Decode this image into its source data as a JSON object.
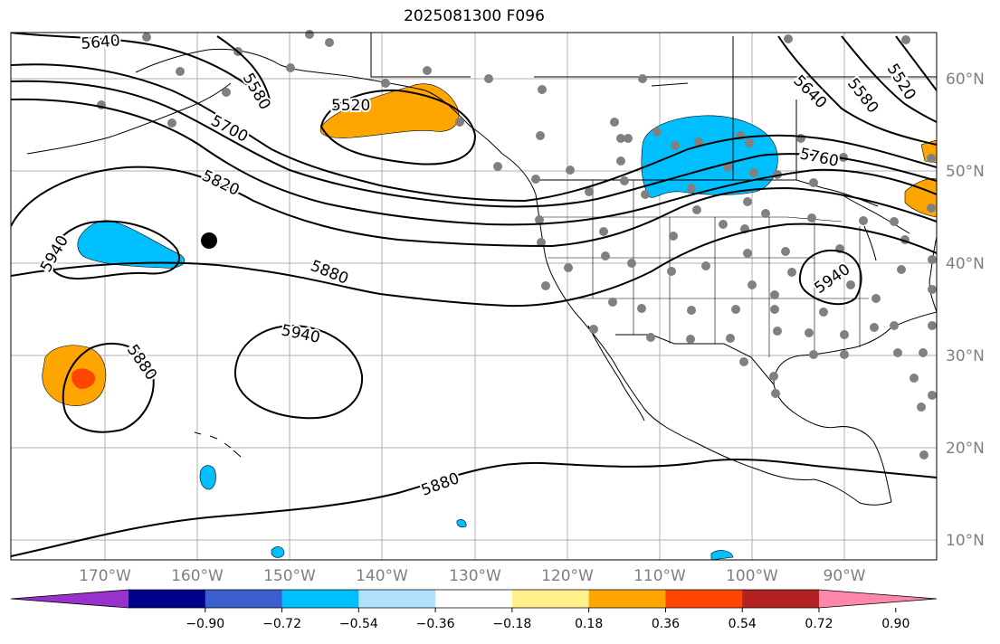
{
  "title": "2025081300 F096",
  "map": {
    "lat_labels": [
      "60°N",
      "50°N",
      "40°N",
      "30°N",
      "20°N",
      "10°N"
    ],
    "lat_values": [
      60,
      50,
      40,
      30,
      20,
      10
    ],
    "lon_labels": [
      "170°W",
      "160°W",
      "150°W",
      "140°W",
      "130°W",
      "120°W",
      "110°W",
      "100°W",
      "90°W"
    ],
    "lon_values": [
      -170,
      -160,
      -150,
      -140,
      -130,
      -120,
      -110,
      -100,
      -90
    ],
    "contour_labels": [
      "5640",
      "5580",
      "5700",
      "5520",
      "5820",
      "5940",
      "5880",
      "5940",
      "5880",
      "5880",
      "5760",
      "5640",
      "5580",
      "5520",
      "5940"
    ],
    "colors": {
      "contour": "#000000",
      "station": "#808080",
      "grid": "#b0b0b0"
    }
  },
  "colorbar": {
    "colors": [
      "#9932cc",
      "#00008b",
      "#3a5fcd",
      "#00bfff",
      "#b0e2ff",
      "#ffffff",
      "#fff08c",
      "#ffa500",
      "#ff4500",
      "#b22222",
      "#ff88aa"
    ],
    "tick_labels": [
      "−0.90",
      "−0.72",
      "−0.54",
      "−0.36",
      "−0.18",
      "0.18",
      "0.36",
      "0.54",
      "0.72",
      "0.90"
    ]
  }
}
